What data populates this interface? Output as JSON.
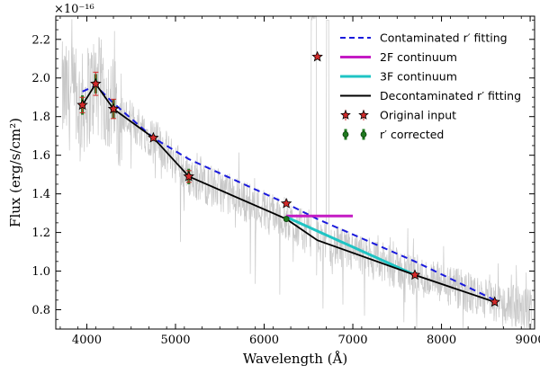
{
  "chart_data": {
    "type": "line",
    "xlabel": "Wavelength (Å)",
    "ylabel": "Flux (erg/s/cm²)",
    "y_scale_label": "×10⁻¹⁶",
    "xlim": [
      3650,
      9050
    ],
    "ylim": [
      0.7,
      2.32
    ],
    "x_ticks": [
      4000,
      5000,
      6000,
      7000,
      8000,
      9000
    ],
    "y_ticks": [
      0.8,
      1.0,
      1.2,
      1.4,
      1.6,
      1.8,
      2.0,
      2.2
    ],
    "grid": false,
    "legend_position": "top-right",
    "series": [
      {
        "name": "Contaminated r′ fitting",
        "style": "dashed",
        "color": "#1a1adc",
        "x": [
          3950,
          4100,
          4300,
          4750,
          5150,
          6250,
          6600,
          7700,
          8600
        ],
        "y": [
          1.93,
          1.96,
          1.87,
          1.69,
          1.58,
          1.35,
          1.27,
          1.05,
          0.85
        ]
      },
      {
        "name": "2F continuum",
        "style": "solid",
        "color": "#c41bc4",
        "x": [
          6250,
          7000
        ],
        "y": [
          1.285,
          1.285
        ]
      },
      {
        "name": "3F continuum",
        "style": "solid",
        "color": "#1fc4c4",
        "x": [
          6250,
          7700
        ],
        "y": [
          1.28,
          0.98
        ]
      },
      {
        "name": "Decontaminated r′ fitting",
        "style": "solid",
        "color": "#000000",
        "x": [
          3950,
          4100,
          4300,
          4750,
          5150,
          6250,
          6600,
          7700,
          8600
        ],
        "y": [
          1.86,
          1.97,
          1.84,
          1.69,
          1.49,
          1.27,
          1.16,
          0.98,
          0.84
        ]
      },
      {
        "name": "Original input",
        "style": "markers",
        "color": "#d42a2a",
        "x": [
          3950,
          4100,
          4300,
          4750,
          5150,
          6250,
          6600,
          7700,
          8600
        ],
        "y": [
          1.86,
          1.97,
          1.84,
          1.69,
          1.49,
          1.35,
          2.11,
          0.98,
          0.84
        ],
        "err": [
          0.04,
          0.06,
          0.05,
          0.0,
          0.03,
          0.0,
          0.0,
          0.0,
          0.0
        ]
      },
      {
        "name": "r′ corrected",
        "style": "markers",
        "color": "#1f7a1f",
        "x": [
          3950,
          4100,
          4300,
          4750,
          5150,
          6250,
          7700,
          8600
        ],
        "y": [
          1.86,
          1.97,
          1.84,
          1.69,
          1.49,
          1.27,
          0.98,
          0.84
        ],
        "err": [
          0.05,
          0.05,
          0.05,
          0.0,
          0.04,
          0.0,
          0.0,
          0.0
        ]
      }
    ],
    "background_spectrum_color": "#c8c8c8"
  },
  "colors": {
    "contaminated": "#1a1adc",
    "two_f": "#c41bc4",
    "three_f": "#1fc4c4",
    "decontaminated": "#000000",
    "original": "#d42a2a",
    "corrected": "#1f7a1f",
    "spectrum": "#c8c8c8"
  }
}
